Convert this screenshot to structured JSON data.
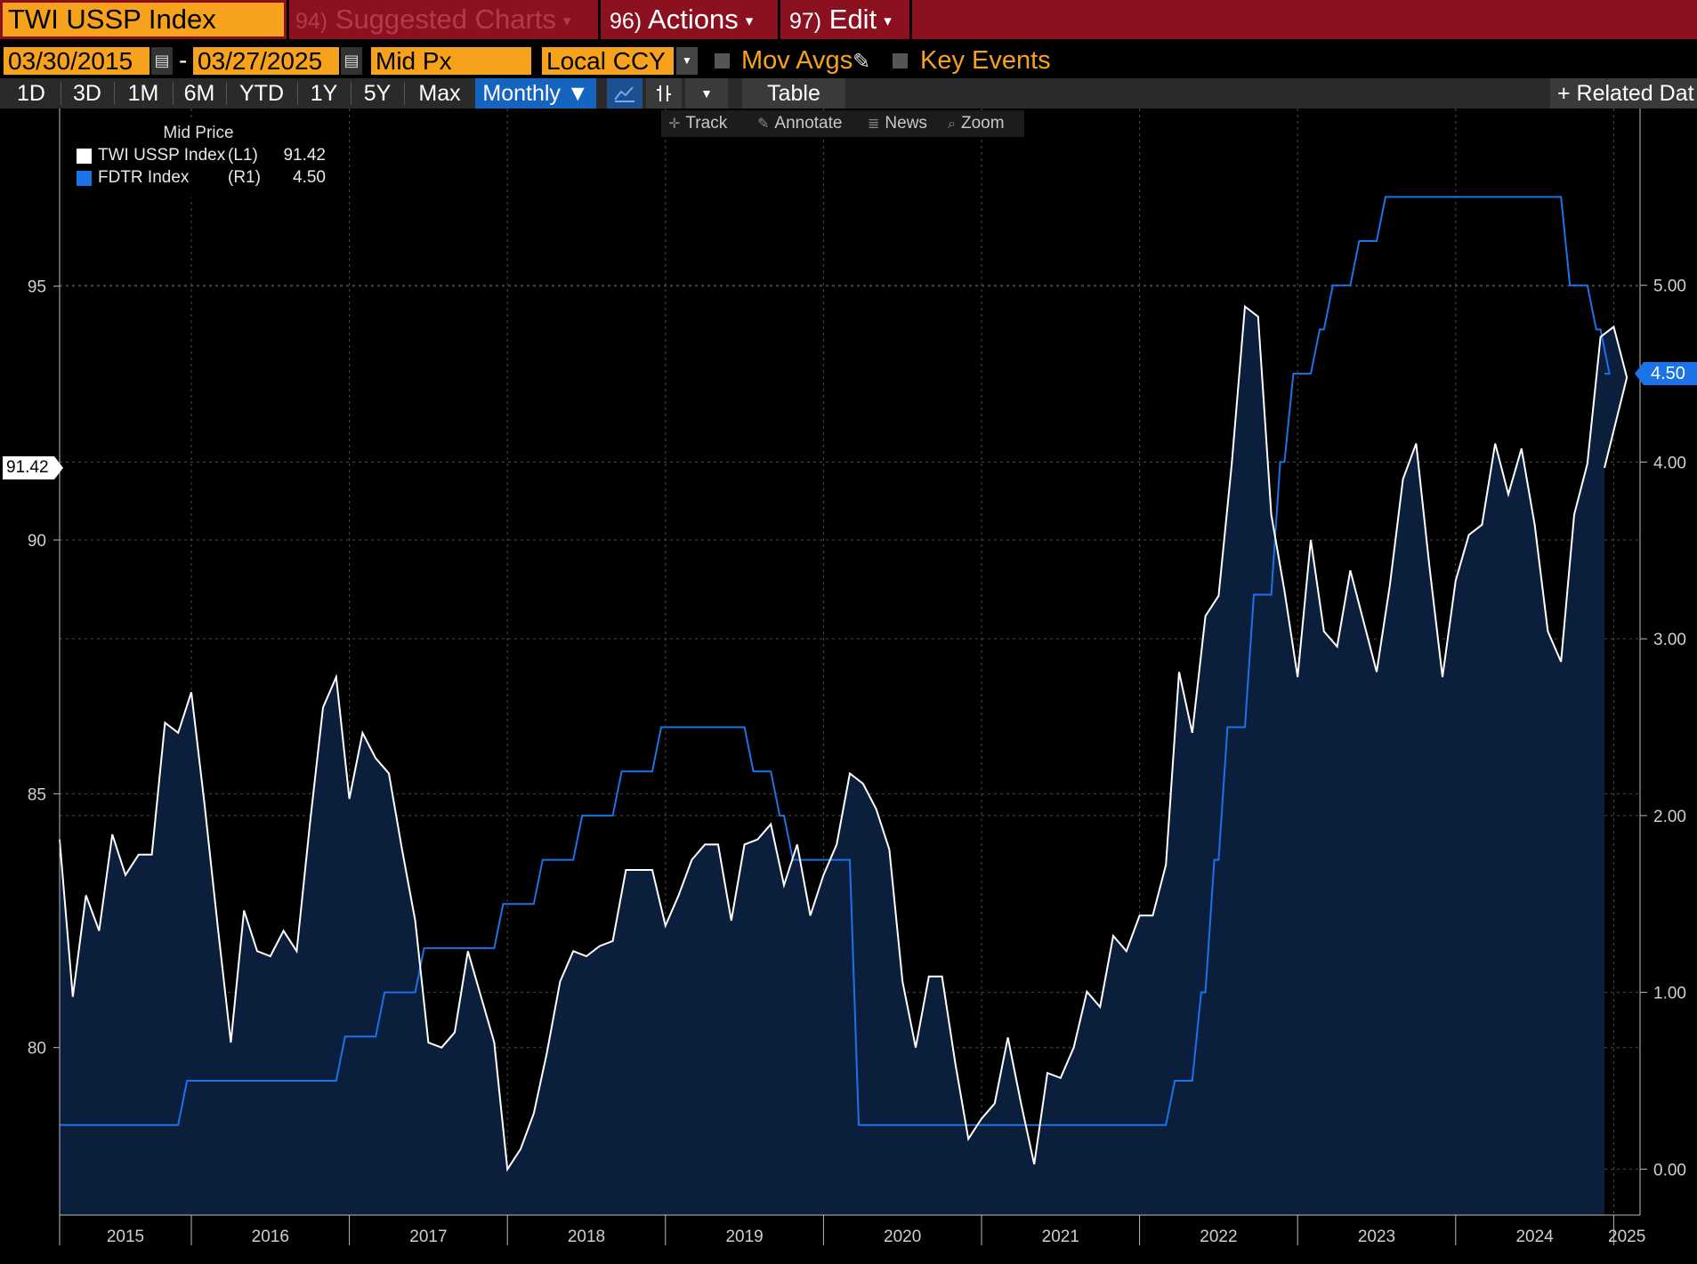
{
  "toolbar": {
    "security": "TWI USSP Index",
    "suggested": {
      "num": "94)",
      "label": "Suggested Charts"
    },
    "actions": {
      "num": "96)",
      "label": "Actions"
    },
    "edit": {
      "num": "97)",
      "label": "Edit"
    },
    "caret": "▾"
  },
  "options": {
    "start_date": "03/30/2015",
    "date_separator": "-",
    "end_date": "03/27/2025",
    "price_field": "Mid Px",
    "currency": "Local CCY",
    "mov_avgs": "Mov Avgs",
    "key_events": "Key Events"
  },
  "periods": {
    "buttons": [
      "1D",
      "3D",
      "1M",
      "6M",
      "YTD",
      "1Y",
      "5Y",
      "Max"
    ],
    "frequency": "Monthly ▼",
    "table": "Table",
    "related": "+ Related Dat"
  },
  "chart_tools": {
    "track": "Track",
    "annotate": "Annotate",
    "news": "News",
    "zoom": "Zoom"
  },
  "legend": {
    "title": "Mid Price",
    "items": [
      {
        "name": "TWI USSP Index",
        "axis": "(L1)",
        "value": "91.42",
        "color": "#ffffff"
      },
      {
        "name": "FDTR Index",
        "axis": "(R1)",
        "value": "4.50",
        "color": "#1a73e8"
      }
    ]
  },
  "last_values": {
    "left": "91.42",
    "right": "4.50"
  },
  "colors": {
    "background": "#000000",
    "area_fill": "#0b1f3d",
    "twi_line": "#ffffff",
    "fdtr_line": "#1a73e8",
    "accent_orange": "#f7a21d",
    "top_bar": "#8b1020"
  },
  "chart_data": {
    "type": "line",
    "title": "",
    "left_axis": {
      "ticks": [
        "80",
        "85",
        "90",
        "95"
      ],
      "ylim": [
        76.7,
        98.5
      ]
    },
    "right_axis": {
      "ticks": [
        "0.00",
        "1.00",
        "2.00",
        "3.00",
        "4.00",
        "5.00"
      ],
      "ylim": [
        -0.26,
        6.0
      ]
    },
    "x_axis": {
      "labels": [
        "2015",
        "2016",
        "2017",
        "2018",
        "2019",
        "2020",
        "2021",
        "2022",
        "2023",
        "2024",
        "2025"
      ],
      "range": [
        "2015-03",
        "2025-03"
      ]
    },
    "grid": true,
    "legend_position": "top-left",
    "series": [
      {
        "name": "TWI USSP Index",
        "axis": "left",
        "style": "line+area",
        "start": "2015-03",
        "frequency": "monthly",
        "values": [
          84.1,
          81.0,
          83.0,
          82.3,
          84.2,
          83.4,
          83.8,
          83.8,
          86.4,
          86.2,
          87.0,
          84.8,
          82.4,
          80.1,
          82.7,
          81.9,
          81.8,
          82.3,
          81.9,
          84.4,
          86.7,
          87.3,
          84.9,
          86.2,
          85.7,
          85.4,
          83.9,
          82.5,
          80.1,
          80.0,
          80.3,
          81.9,
          81.0,
          80.1,
          77.6,
          78.0,
          78.7,
          79.9,
          81.3,
          81.9,
          81.8,
          82.0,
          82.1,
          83.5,
          83.5,
          83.5,
          82.4,
          83.0,
          83.7,
          84.0,
          84.0,
          82.5,
          84.0,
          84.1,
          84.4,
          83.2,
          84.0,
          82.6,
          83.4,
          84.0,
          85.4,
          85.2,
          84.7,
          83.9,
          81.3,
          80.0,
          81.4,
          81.4,
          79.7,
          78.2,
          78.6,
          78.9,
          80.2,
          78.9,
          77.7,
          79.5,
          79.4,
          80.0,
          81.1,
          80.8,
          82.2,
          81.9,
          82.6,
          82.6,
          83.6,
          87.4,
          86.2,
          88.5,
          88.9,
          91.5,
          94.6,
          94.4,
          90.5,
          89.0,
          87.3,
          90.0,
          88.2,
          87.9,
          89.4,
          88.4,
          87.4,
          89.1,
          91.2,
          91.9,
          89.5,
          87.3,
          89.2,
          90.1,
          90.3,
          91.9,
          90.9,
          91.8,
          90.3,
          88.2,
          87.6,
          90.5,
          91.5,
          94.0,
          94.2,
          93.2,
          91.42
        ]
      },
      {
        "name": "FDTR Index",
        "axis": "right",
        "style": "step",
        "points": [
          [
            "2015-03",
            0.25
          ],
          [
            "2015-12",
            0.5
          ],
          [
            "2016-12",
            0.75
          ],
          [
            "2017-03",
            1.0
          ],
          [
            "2017-06",
            1.25
          ],
          [
            "2017-12",
            1.5
          ],
          [
            "2018-03",
            1.75
          ],
          [
            "2018-06",
            2.0
          ],
          [
            "2018-09",
            2.25
          ],
          [
            "2018-12",
            2.5
          ],
          [
            "2019-07",
            2.25
          ],
          [
            "2019-09",
            2.0
          ],
          [
            "2019-10",
            1.75
          ],
          [
            "2020-03",
            0.25
          ],
          [
            "2022-03",
            0.5
          ],
          [
            "2022-05",
            1.0
          ],
          [
            "2022-06",
            1.75
          ],
          [
            "2022-07",
            2.5
          ],
          [
            "2022-09",
            3.25
          ],
          [
            "2022-11",
            4.0
          ],
          [
            "2022-12",
            4.5
          ],
          [
            "2023-02",
            4.75
          ],
          [
            "2023-03",
            5.0
          ],
          [
            "2023-05",
            5.25
          ],
          [
            "2023-07",
            5.5
          ],
          [
            "2024-09",
            5.0
          ],
          [
            "2024-11",
            4.75
          ],
          [
            "2024-12",
            4.5
          ],
          [
            "2025-03",
            4.5
          ]
        ]
      }
    ]
  }
}
